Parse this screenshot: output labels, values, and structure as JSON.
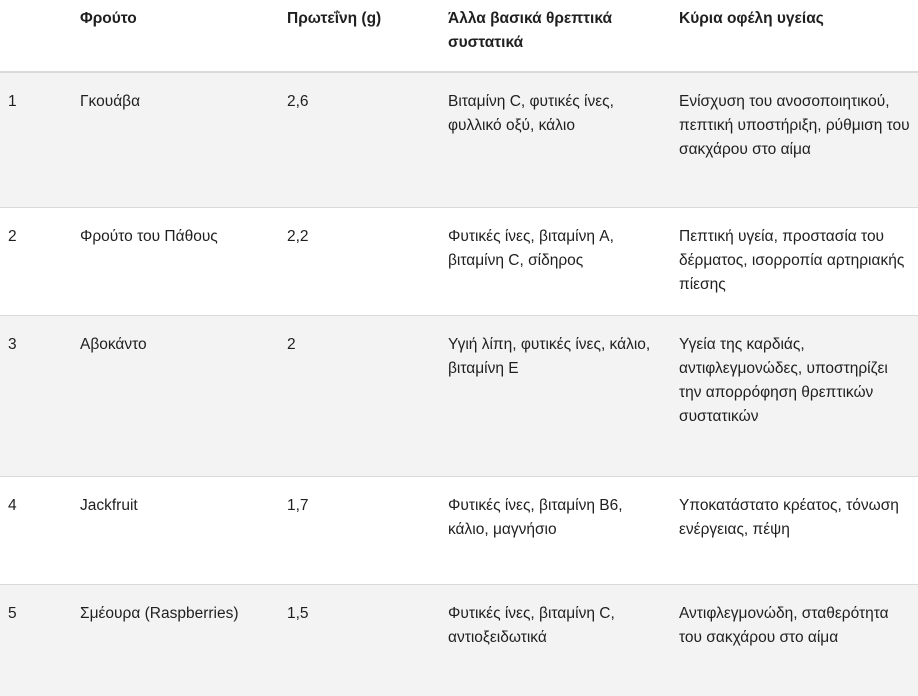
{
  "table": {
    "headers": [
      "",
      "Φρούτο",
      "Πρωτεΐνη (g)",
      "Άλλα βασικά θρεπτικά συστατικά",
      "Κύρια οφέλη υγείας"
    ],
    "rows": [
      [
        "1",
        "Γκουάβα",
        "2,6",
        "Βιταμίνη C, φυτικές ίνες, φυλλικό οξύ, κάλιο",
        "Ενίσχυση του ανοσοποιητικού, πεπτική υποστήριξη, ρύθμιση του σακχάρου στο αίμα"
      ],
      [
        "2",
        "Φρούτο του Πάθους",
        "2,2",
        "Φυτικές ίνες, βιταμίνη A, βιταμίνη C, σίδηρος",
        "Πεπτική υγεία, προστασία του δέρματος, ισορροπία αρτηριακής πίεσης"
      ],
      [
        "3",
        "Αβοκάντο",
        "2",
        "Υγιή λίπη, φυτικές ίνες, κάλιο, βιταμίνη E",
        "Υγεία της καρδιάς, αντιφλεγμονώδες, υποστηρίζει την απορρόφηση θρεπτικών συστατικών"
      ],
      [
        "4",
        "Jackfruit",
        "1,7",
        "Φυτικές ίνες, βιταμίνη B6, κάλιο, μαγνήσιο",
        "Υποκατάστατο κρέατος, τόνωση ενέργειας, πέψη"
      ],
      [
        "5",
        "Σμέουρα (Raspberries)",
        "1,5",
        "Φυτικές ίνες, βιταμίνη C, αντιοξειδωτικά",
        "Αντιφλεγμονώδη, σταθερότητα του σακχάρου στο αίμα"
      ]
    ]
  }
}
